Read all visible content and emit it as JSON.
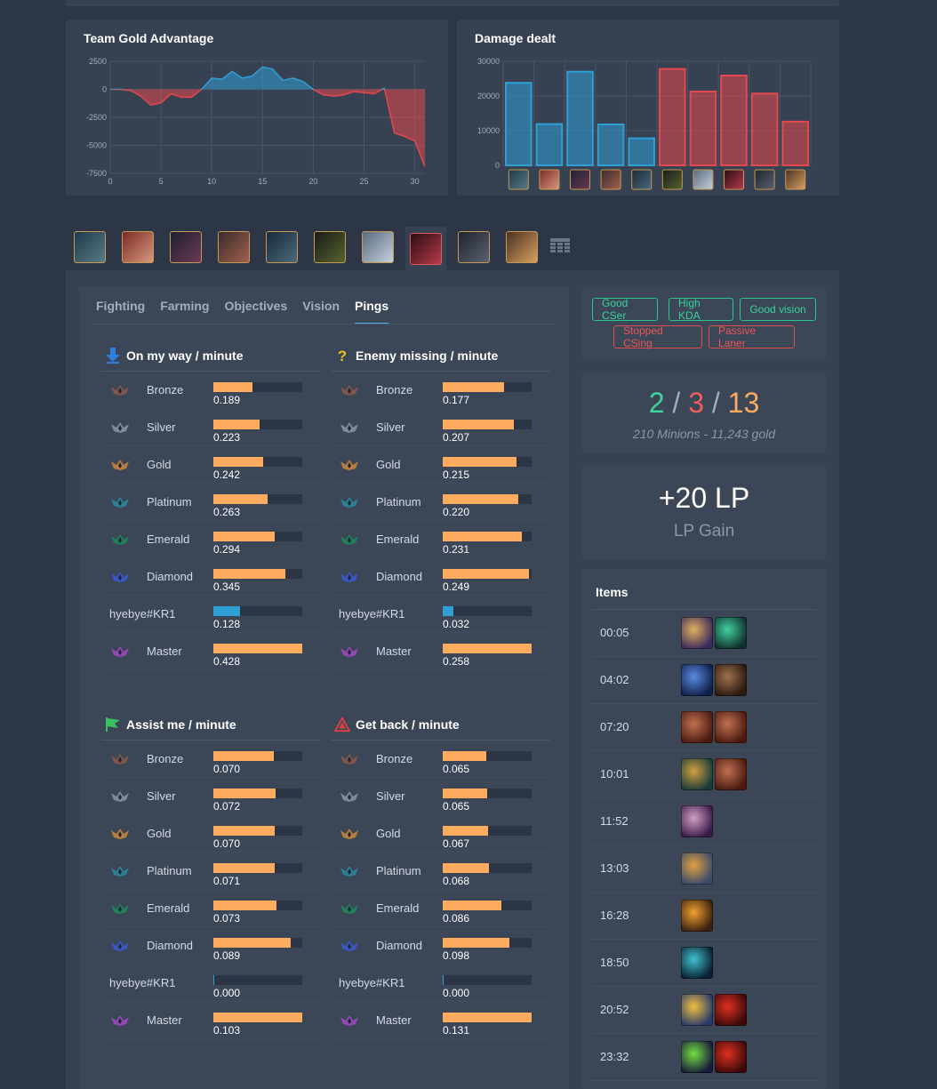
{
  "gold_chart": {
    "title": "Team Gold Advantage",
    "chart_data": {
      "type": "area",
      "ylim": [
        -7500,
        2500
      ],
      "xlim": [
        0,
        31
      ],
      "yticks": [
        2500,
        0,
        -2500,
        -5000,
        -7500
      ],
      "xticks": [
        0,
        5,
        10,
        15,
        20,
        25,
        30
      ],
      "grid": true,
      "x": [
        0,
        1,
        2,
        3,
        4,
        5,
        6,
        7,
        8,
        9,
        10,
        11,
        12,
        13,
        14,
        15,
        16,
        17,
        18,
        19,
        20,
        21,
        22,
        23,
        24,
        25,
        26,
        27,
        28,
        29,
        30,
        31
      ],
      "values": [
        0,
        0,
        -100,
        -600,
        -1400,
        -1200,
        -400,
        -700,
        -700,
        0,
        1000,
        900,
        1600,
        1000,
        1200,
        2000,
        1800,
        800,
        1000,
        700,
        0,
        -500,
        -600,
        -500,
        -200,
        -300,
        -400,
        100,
        -3900,
        -4200,
        -4600,
        -6900
      ]
    }
  },
  "damage_chart": {
    "title": "Damage dealt",
    "chart_data": {
      "type": "bar",
      "ylim": [
        0,
        30000
      ],
      "yticks": [
        30000,
        20000,
        10000,
        0
      ],
      "grid": true,
      "values": [
        23800,
        11900,
        27000,
        11800,
        7800,
        27800,
        21300,
        25900,
        20700,
        12600
      ],
      "teams": [
        "blue",
        "blue",
        "blue",
        "blue",
        "blue",
        "red",
        "red",
        "red",
        "red",
        "red"
      ]
    }
  },
  "colors": {
    "blue": "#2f9fd6",
    "red": "#e5484d",
    "bar": "#fdac5f",
    "good": "#38d49a",
    "bad": "#ee5858"
  },
  "champions": [
    {
      "name": "champion-1",
      "c1": "#1d3b4a",
      "c2": "#5a7a84"
    },
    {
      "name": "champion-2",
      "c1": "#7b2a28",
      "c2": "#d89a7c"
    },
    {
      "name": "champion-3",
      "c1": "#1f2030",
      "c2": "#6a3a54"
    },
    {
      "name": "champion-4",
      "c1": "#3a2a2a",
      "c2": "#a0624e"
    },
    {
      "name": "champion-5",
      "c1": "#1a2a3a",
      "c2": "#4a6a7a"
    },
    {
      "name": "champion-6",
      "c1": "#1a1a18",
      "c2": "#56642e"
    },
    {
      "name": "champion-7",
      "c1": "#5a6a7e",
      "c2": "#c5d1dc"
    },
    {
      "name": "champion-8",
      "c1": "#2a0e14",
      "c2": "#b83a4a"
    },
    {
      "name": "champion-9",
      "c1": "#20252e",
      "c2": "#5a6070"
    },
    {
      "name": "champion-10",
      "c1": "#4a3020",
      "c2": "#d8a060"
    }
  ],
  "subtabs": [
    "Fighting",
    "Farming",
    "Objectives",
    "Vision",
    "Pings"
  ],
  "active_subtab": "Pings",
  "ping_sections": [
    {
      "title": "On my way / minute",
      "icon": "arrow-down-icon",
      "rows": [
        {
          "label": "Bronze",
          "tier": "bronze",
          "value": "0.189",
          "pct": 0.44
        },
        {
          "label": "Silver",
          "tier": "silver",
          "value": "0.223",
          "pct": 0.52
        },
        {
          "label": "Gold",
          "tier": "gold",
          "value": "0.242",
          "pct": 0.56
        },
        {
          "label": "Platinum",
          "tier": "platinum",
          "value": "0.263",
          "pct": 0.61
        },
        {
          "label": "Emerald",
          "tier": "emerald",
          "value": "0.294",
          "pct": 0.69
        },
        {
          "label": "Diamond",
          "tier": "diamond",
          "value": "0.345",
          "pct": 0.81
        },
        {
          "label": "hyebye#KR1",
          "tier": "user",
          "value": "0.128",
          "pct": 0.3
        },
        {
          "label": "Master",
          "tier": "master",
          "value": "0.428",
          "pct": 1.0
        }
      ]
    },
    {
      "title": "Enemy missing / minute",
      "icon": "question-mark-icon",
      "rows": [
        {
          "label": "Bronze",
          "tier": "bronze",
          "value": "0.177",
          "pct": 0.69
        },
        {
          "label": "Silver",
          "tier": "silver",
          "value": "0.207",
          "pct": 0.8
        },
        {
          "label": "Gold",
          "tier": "gold",
          "value": "0.215",
          "pct": 0.83
        },
        {
          "label": "Platinum",
          "tier": "platinum",
          "value": "0.220",
          "pct": 0.85
        },
        {
          "label": "Emerald",
          "tier": "emerald",
          "value": "0.231",
          "pct": 0.89
        },
        {
          "label": "Diamond",
          "tier": "diamond",
          "value": "0.249",
          "pct": 0.97
        },
        {
          "label": "hyebye#KR1",
          "tier": "user",
          "value": "0.032",
          "pct": 0.12
        },
        {
          "label": "Master",
          "tier": "master",
          "value": "0.258",
          "pct": 1.0
        }
      ]
    },
    {
      "title": "Assist me / minute",
      "icon": "flag-icon",
      "rows": [
        {
          "label": "Bronze",
          "tier": "bronze",
          "value": "0.070",
          "pct": 0.68
        },
        {
          "label": "Silver",
          "tier": "silver",
          "value": "0.072",
          "pct": 0.7
        },
        {
          "label": "Gold",
          "tier": "gold",
          "value": "0.070",
          "pct": 0.69
        },
        {
          "label": "Platinum",
          "tier": "platinum",
          "value": "0.071",
          "pct": 0.69
        },
        {
          "label": "Emerald",
          "tier": "emerald",
          "value": "0.073",
          "pct": 0.71
        },
        {
          "label": "Diamond",
          "tier": "diamond",
          "value": "0.089",
          "pct": 0.87
        },
        {
          "label": "hyebye#KR1",
          "tier": "user",
          "value": "0.000",
          "pct": 0.01
        },
        {
          "label": "Master",
          "tier": "master",
          "value": "0.103",
          "pct": 1.0
        }
      ]
    },
    {
      "title": "Get back / minute",
      "icon": "warning-icon",
      "rows": [
        {
          "label": "Bronze",
          "tier": "bronze",
          "value": "0.065",
          "pct": 0.49
        },
        {
          "label": "Silver",
          "tier": "silver",
          "value": "0.065",
          "pct": 0.5
        },
        {
          "label": "Gold",
          "tier": "gold",
          "value": "0.067",
          "pct": 0.51
        },
        {
          "label": "Platinum",
          "tier": "platinum",
          "value": "0.068",
          "pct": 0.52
        },
        {
          "label": "Emerald",
          "tier": "emerald",
          "value": "0.086",
          "pct": 0.66
        },
        {
          "label": "Diamond",
          "tier": "diamond",
          "value": "0.098",
          "pct": 0.75
        },
        {
          "label": "hyebye#KR1",
          "tier": "user",
          "value": "0.000",
          "pct": 0.01
        },
        {
          "label": "Master",
          "tier": "master",
          "value": "0.131",
          "pct": 1.0
        }
      ]
    }
  ],
  "badges": {
    "good": [
      "Good CSer",
      "High KDA",
      "Good vision"
    ],
    "bad": [
      "Stopped CSing",
      "Passive Laner"
    ]
  },
  "kda": {
    "kills": "2",
    "deaths": "3",
    "assists": "13",
    "sep": "/",
    "summary": "210 Minions - 11,243 gold"
  },
  "lp": {
    "value": "+20 LP",
    "label": "LP Gain"
  },
  "items": {
    "title": "Items",
    "rows": [
      {
        "time": "00:05",
        "icons": [
          {
            "name": "orb-item-icon",
            "c1": "#3a2a5a",
            "c2": "#e0b060"
          },
          {
            "name": "potion-item-icon",
            "c1": "#10302a",
            "c2": "#40d0a0"
          }
        ]
      },
      {
        "time": "04:02",
        "icons": [
          {
            "name": "ring-item-icon",
            "c1": "#10204a",
            "c2": "#5a8ae0"
          },
          {
            "name": "boots-item-icon",
            "c1": "#2a1a10",
            "c2": "#a07050"
          }
        ]
      },
      {
        "time": "07:20",
        "icons": [
          {
            "name": "tome-item-icon",
            "c1": "#4a1a10",
            "c2": "#c07050"
          },
          {
            "name": "tome-item-icon",
            "c1": "#4a1a10",
            "c2": "#c07050"
          }
        ]
      },
      {
        "time": "10:01",
        "icons": [
          {
            "name": "amulet-item-icon",
            "c1": "#1a3a3a",
            "c2": "#d0a040"
          },
          {
            "name": "tome-item-icon",
            "c1": "#4a1a10",
            "c2": "#c07050"
          }
        ]
      },
      {
        "time": "11:52",
        "icons": [
          {
            "name": "spellbook-item-icon",
            "c1": "#3a1a4a",
            "c2": "#d0a0c0"
          }
        ]
      },
      {
        "time": "13:03",
        "icons": [
          {
            "name": "gauntlet-item-icon",
            "c1": "#3a4a6a",
            "c2": "#e0a040"
          }
        ]
      },
      {
        "time": "16:28",
        "icons": [
          {
            "name": "wand-item-icon",
            "c1": "#3a2010",
            "c2": "#f0a030"
          }
        ]
      },
      {
        "time": "18:50",
        "icons": [
          {
            "name": "spirit-item-icon",
            "c1": "#0a2030",
            "c2": "#40c0d0"
          }
        ]
      },
      {
        "time": "20:52",
        "icons": [
          {
            "name": "scepter-item-icon",
            "c1": "#2a3a6a",
            "c2": "#f0c040"
          },
          {
            "name": "hat-item-icon",
            "c1": "#3a0a0a",
            "c2": "#e03020"
          }
        ]
      },
      {
        "time": "23:32",
        "icons": [
          {
            "name": "boots-item-icon",
            "c1": "#1a1a3a",
            "c2": "#70e040"
          },
          {
            "name": "hat-item-icon",
            "c1": "#3a0a0a",
            "c2": "#e03020"
          }
        ]
      }
    ]
  }
}
